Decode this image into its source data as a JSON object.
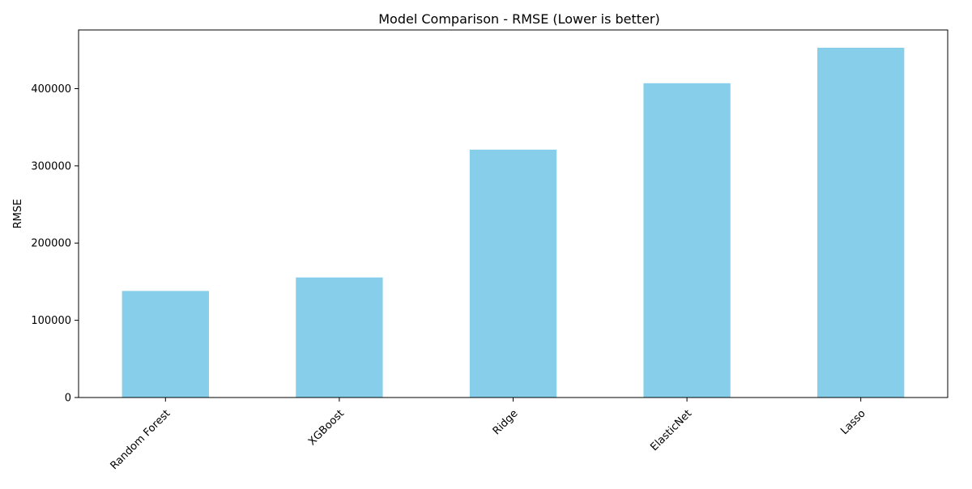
{
  "chart_data": {
    "type": "bar",
    "title": "Model Comparison - RMSE (Lower is better)",
    "xlabel": "",
    "ylabel": "RMSE",
    "categories": [
      "Random Forest",
      "XGBoost",
      "Ridge",
      "ElasticNet",
      "Lasso"
    ],
    "values": [
      138000,
      155500,
      321000,
      407000,
      453000
    ],
    "ylim": [
      0,
      476000
    ],
    "yticks": [
      0,
      100000,
      200000,
      300000,
      400000
    ],
    "ytick_labels": [
      "0",
      "100000",
      "200000",
      "300000",
      "400000"
    ],
    "xtick_rotation_deg": 45,
    "grid": false,
    "legend": "none",
    "colors": {
      "bar": "#87ceeb",
      "axis": "#000000",
      "background": "#ffffff"
    }
  }
}
